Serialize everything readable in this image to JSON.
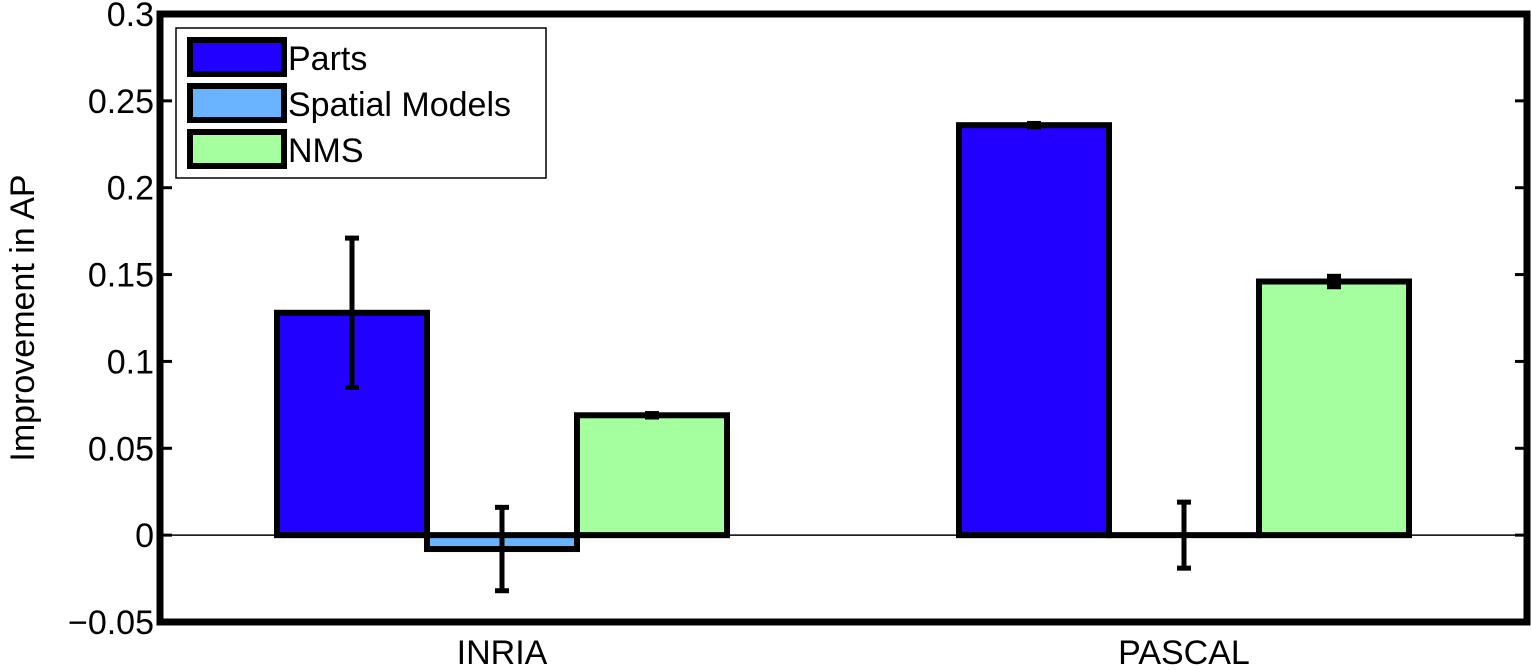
{
  "chart_data": {
    "type": "bar",
    "title": "",
    "xlabel": "",
    "ylabel": "Improvement in AP",
    "categories": [
      "INRIA",
      "PASCAL"
    ],
    "ylim": [
      -0.05,
      0.3
    ],
    "yticks": [
      -0.05,
      0,
      0.05,
      0.1,
      0.15,
      0.2,
      0.25,
      0.3
    ],
    "ytick_labels": [
      "−0.05",
      "0",
      "0.05",
      "0.1",
      "0.15",
      "0.2",
      "0.25",
      "0.3"
    ],
    "grid": false,
    "legend_position": "top-left",
    "series": [
      {
        "name": "Parts",
        "color": "#2200ff",
        "values": [
          0.128,
          0.236
        ],
        "errors": [
          0.043,
          0.001
        ]
      },
      {
        "name": "Spatial Models",
        "color": "#6ab4ff",
        "values": [
          -0.008,
          0.0
        ],
        "errors": [
          0.024,
          0.019
        ]
      },
      {
        "name": "NMS",
        "color": "#a6ff9e",
        "values": [
          0.069,
          0.146
        ],
        "errors": [
          0.001,
          0.003
        ]
      }
    ]
  }
}
